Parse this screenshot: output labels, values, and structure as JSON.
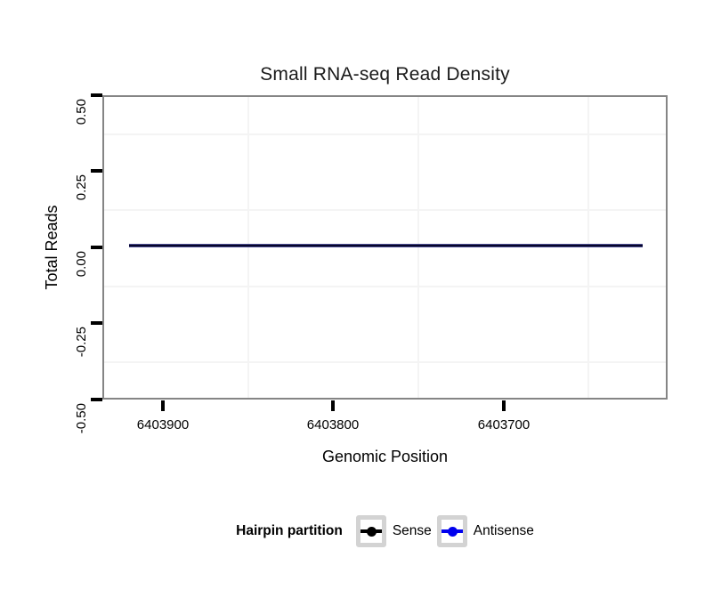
{
  "title": "Small RNA-seq Read Density",
  "axes": {
    "x": {
      "label": "Genomic Position",
      "ticks": [
        "6403900",
        "6403800",
        "6403700"
      ],
      "reversed": true
    },
    "y": {
      "label": "Total Reads",
      "ticks": [
        "0.50",
        "0.25",
        "0.00",
        "-0.25",
        "-0.50"
      ]
    }
  },
  "legend": {
    "title": "Hairpin partition",
    "items": [
      {
        "label": "Sense",
        "color": "#000000"
      },
      {
        "label": "Antisense",
        "color": "#0000ee"
      }
    ]
  },
  "colors": {
    "panel_border": "#858585",
    "gridline_minor": "#f4f4f4",
    "tick": "#000000",
    "plotted_line_rendered": "#0c0c3c",
    "legend_key_border": "#d3d3d3"
  },
  "chart_data": {
    "type": "line",
    "title": "Small RNA-seq Read Density",
    "xlabel": "Genomic Position",
    "ylabel": "Total Reads",
    "x_axis_reversed": true,
    "x_ticks": [
      6403900,
      6403800,
      6403700
    ],
    "x_range_displayed": [
      6403936,
      6403604
    ],
    "ylim": [
      -0.5,
      0.5
    ],
    "y_ticks": [
      0.5,
      0.25,
      0.0,
      -0.25,
      -0.5
    ],
    "series": [
      {
        "name": "Sense",
        "color": "#000000",
        "x": [
          6403920,
          6403618
        ],
        "values": [
          0,
          0
        ]
      },
      {
        "name": "Antisense",
        "color": "#0000ee",
        "x": [
          6403920,
          6403618
        ],
        "values": [
          0,
          0
        ]
      }
    ],
    "legend_title": "Hairpin partition",
    "legend_position": "bottom",
    "grid": "minor gridlines only (very light gray), white panel with gray border",
    "note": "Both series overplot as a flat line at y = 0 spanning the panel"
  }
}
